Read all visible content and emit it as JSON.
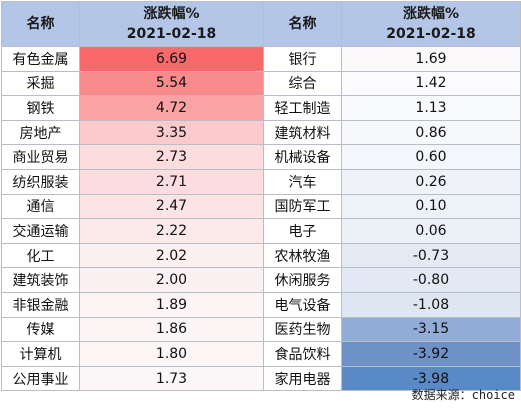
{
  "header": {
    "name_label": "名称",
    "change_label": "涨跌幅%",
    "date_label": "2021-02-18"
  },
  "left": [
    {
      "name": "有色金属",
      "value": "6.69",
      "color": "#f8696b"
    },
    {
      "name": "采掘",
      "value": "5.54",
      "color": "#f98b8d"
    },
    {
      "name": "钢铁",
      "value": "4.72",
      "color": "#faa3a5"
    },
    {
      "name": "房地产",
      "value": "3.35",
      "color": "#fbcacc"
    },
    {
      "name": "商业贸易",
      "value": "2.73",
      "color": "#fcdcdd"
    },
    {
      "name": "纺织服装",
      "value": "2.71",
      "color": "#fcdcde"
    },
    {
      "name": "通信",
      "value": "2.47",
      "color": "#fce3e4"
    },
    {
      "name": "交通运输",
      "value": "2.22",
      "color": "#fceaeb"
    },
    {
      "name": "化工",
      "value": "2.02",
      "color": "#fcf0f1"
    },
    {
      "name": "建筑装饰",
      "value": "2.00",
      "color": "#fcf1f2"
    },
    {
      "name": "非银金融",
      "value": "1.89",
      "color": "#fcf4f5"
    },
    {
      "name": "传媒",
      "value": "1.86",
      "color": "#fcf5f6"
    },
    {
      "name": "计算机",
      "value": "1.80",
      "color": "#fcf6f7"
    },
    {
      "name": "公用事业",
      "value": "1.73",
      "color": "#fcf8f9"
    }
  ],
  "right": [
    {
      "name": "银行",
      "value": "1.69",
      "color": "#fcf9fa"
    },
    {
      "name": "综合",
      "value": "1.42",
      "color": "#fcfcff"
    },
    {
      "name": "轻工制造",
      "value": "1.13",
      "color": "#f9fafe"
    },
    {
      "name": "建筑材料",
      "value": "0.86",
      "color": "#f6f8fc"
    },
    {
      "name": "机械设备",
      "value": "0.60",
      "color": "#f3f6fb"
    },
    {
      "name": "汽车",
      "value": "0.26",
      "color": "#eff3f9"
    },
    {
      "name": "国防军工",
      "value": "0.10",
      "color": "#edf1f8"
    },
    {
      "name": "电子",
      "value": "0.06",
      "color": "#ecf1f8"
    },
    {
      "name": "农林牧渔",
      "value": "-0.73",
      "color": "#e3eaf4"
    },
    {
      "name": "休闲服务",
      "value": "-0.80",
      "color": "#e2e9f4"
    },
    {
      "name": "电气设备",
      "value": "-1.08",
      "color": "#dee6f2"
    },
    {
      "name": "医药生物",
      "value": "-3.15",
      "color": "#91acd6"
    },
    {
      "name": "食品饮料",
      "value": "-3.92",
      "color": "#6e91c8"
    },
    {
      "name": "家用电器",
      "value": "-3.98",
      "color": "#5a8ac6"
    }
  ],
  "source": "数据来源：choice"
}
